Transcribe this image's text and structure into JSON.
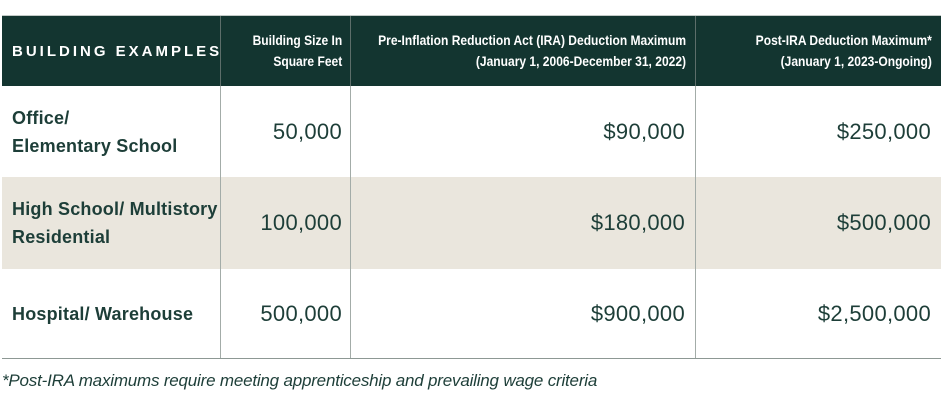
{
  "colors": {
    "header_bg": "#133530",
    "header_divider": "#5D6E6A",
    "divider": "#A3ACA8",
    "bottom_border": "#8D9894",
    "shaded_row_bg": "#EAE6DD",
    "text_color": "#1D3E38"
  },
  "table": {
    "headers": [
      {
        "id": "building-examples",
        "lines": [
          "BUILDING EXAMPLES"
        ]
      },
      {
        "id": "building-size",
        "lines": [
          "Building Size In",
          "Square Feet"
        ]
      },
      {
        "id": "pre-ira",
        "lines": [
          "Pre-Inflation Reduction Act (IRA) Deduction Maximum",
          "(January 1, 2006-December 31, 2022)"
        ]
      },
      {
        "id": "post-ira",
        "lines": [
          "Post-IRA Deduction Maximum*",
          "(January 1, 2023-Ongoing)"
        ]
      }
    ],
    "rows": [
      {
        "example_lines": [
          "Office/",
          "Elementary School"
        ],
        "size": "50,000",
        "pre_ira": "$90,000",
        "post_ira": "$250,000"
      },
      {
        "example_lines": [
          "High School/ Multistory",
          "Residential"
        ],
        "size": "100,000",
        "pre_ira": "$180,000",
        "post_ira": "$500,000"
      },
      {
        "example_lines": [
          "Hospital/ Warehouse"
        ],
        "size": "500,000",
        "pre_ira": "$900,000",
        "post_ira": "$2,500,000"
      }
    ]
  },
  "footnote": "*Post-IRA maximums require meeting apprenticeship and prevailing wage criteria"
}
